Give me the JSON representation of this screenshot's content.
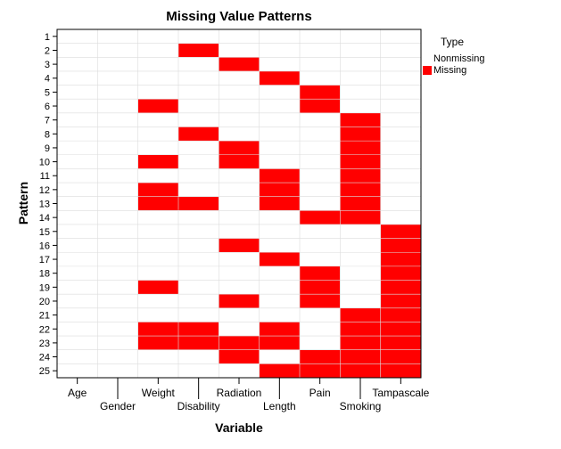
{
  "chart_data": {
    "type": "heatmap",
    "title": "Missing Value Patterns",
    "xlabel": "Variable",
    "ylabel": "Pattern",
    "variables": [
      "Age",
      "Gender",
      "Weight",
      "Disability",
      "Radiation",
      "Length",
      "Pain",
      "Smoking",
      "Tampascale"
    ],
    "patterns": [
      "1",
      "2",
      "3",
      "4",
      "5",
      "6",
      "7",
      "8",
      "9",
      "10",
      "11",
      "12",
      "13",
      "14",
      "15",
      "16",
      "17",
      "18",
      "19",
      "20",
      "21",
      "22",
      "23",
      "24",
      "25"
    ],
    "missing_cells": [
      {
        "pattern": "2",
        "variables": [
          "Disability"
        ]
      },
      {
        "pattern": "3",
        "variables": [
          "Radiation"
        ]
      },
      {
        "pattern": "4",
        "variables": [
          "Length"
        ]
      },
      {
        "pattern": "5",
        "variables": [
          "Pain"
        ]
      },
      {
        "pattern": "6",
        "variables": [
          "Weight",
          "Pain"
        ]
      },
      {
        "pattern": "7",
        "variables": [
          "Smoking"
        ]
      },
      {
        "pattern": "8",
        "variables": [
          "Disability",
          "Smoking"
        ]
      },
      {
        "pattern": "9",
        "variables": [
          "Radiation",
          "Smoking"
        ]
      },
      {
        "pattern": "10",
        "variables": [
          "Weight",
          "Radiation",
          "Smoking"
        ]
      },
      {
        "pattern": "11",
        "variables": [
          "Length",
          "Smoking"
        ]
      },
      {
        "pattern": "12",
        "variables": [
          "Weight",
          "Length",
          "Smoking"
        ]
      },
      {
        "pattern": "13",
        "variables": [
          "Weight",
          "Disability",
          "Length",
          "Smoking"
        ]
      },
      {
        "pattern": "14",
        "variables": [
          "Pain",
          "Smoking"
        ]
      },
      {
        "pattern": "15",
        "variables": [
          "Tampascale"
        ]
      },
      {
        "pattern": "16",
        "variables": [
          "Radiation",
          "Tampascale"
        ]
      },
      {
        "pattern": "17",
        "variables": [
          "Length",
          "Tampascale"
        ]
      },
      {
        "pattern": "18",
        "variables": [
          "Pain",
          "Tampascale"
        ]
      },
      {
        "pattern": "19",
        "variables": [
          "Weight",
          "Pain",
          "Tampascale"
        ]
      },
      {
        "pattern": "20",
        "variables": [
          "Radiation",
          "Pain",
          "Tampascale"
        ]
      },
      {
        "pattern": "21",
        "variables": [
          "Smoking",
          "Tampascale"
        ]
      },
      {
        "pattern": "22",
        "variables": [
          "Weight",
          "Disability",
          "Length",
          "Smoking",
          "Tampascale"
        ]
      },
      {
        "pattern": "23",
        "variables": [
          "Weight",
          "Disability",
          "Radiation",
          "Length",
          "Smoking",
          "Tampascale"
        ]
      },
      {
        "pattern": "24",
        "variables": [
          "Radiation",
          "Pain",
          "Smoking",
          "Tampascale"
        ]
      },
      {
        "pattern": "25",
        "variables": [
          "Length",
          "Pain",
          "Smoking",
          "Tampascale"
        ]
      }
    ],
    "legend": {
      "title": "Type",
      "placement": "top-right",
      "items": [
        {
          "label": "Nonmissing",
          "color": "#ffffff"
        },
        {
          "label": "Missing",
          "color": "#ff0000"
        }
      ]
    },
    "grid": true
  }
}
